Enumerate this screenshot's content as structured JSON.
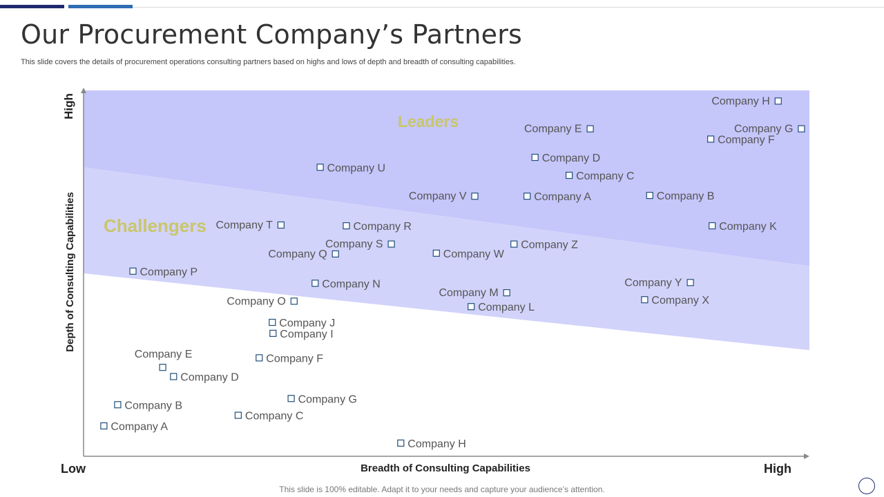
{
  "header": {
    "title": "Our Procurement Company’s Partners",
    "subtitle": "This slide covers the details of procurement operations consulting partners based on highs and lows of depth and breadth of consulting capabilities."
  },
  "footer": {
    "text": "This slide is 100% editable. Adapt it to your needs and capture your audience’s attention."
  },
  "colors": {
    "topbar_dark": "#1f2a6e",
    "topbar_blue": "#2e6db3",
    "leaders_zone": "#c5c6fa",
    "challengers_zone": "#d2d3fb",
    "zone_label": "#c9c66b",
    "marker_stroke": "#1f4e79",
    "point_label": "#555555",
    "axis": "#888888"
  },
  "chart_data": {
    "type": "scatter",
    "xlabel": "Breadth of Consulting Capabilities",
    "ylabel": "Depth of Consulting Capabilities",
    "x_low_label": "Low",
    "x_high_label": "High",
    "y_high_label": "High",
    "xlim": [
      0,
      100
    ],
    "ylim": [
      0,
      100
    ],
    "zones": [
      {
        "label": "Leaders",
        "boundary_left": 79,
        "boundary_right": 52
      },
      {
        "label": "Challengers",
        "boundary_left": 50,
        "boundary_right": 29
      }
    ],
    "points": [
      {
        "label": "Company H",
        "x": 95.7,
        "y": 97.1,
        "label_side": "left"
      },
      {
        "label": "Company E",
        "x": 69.8,
        "y": 89.5,
        "label_side": "left"
      },
      {
        "label": "Company G",
        "x": 98.9,
        "y": 89.5,
        "label_side": "left"
      },
      {
        "label": "Company F",
        "x": 86.4,
        "y": 86.7,
        "label_side": "right"
      },
      {
        "label": "Company D",
        "x": 62.2,
        "y": 81.7,
        "label_side": "right"
      },
      {
        "label": "Company C",
        "x": 66.9,
        "y": 76.8,
        "label_side": "right"
      },
      {
        "label": "Company U",
        "x": 32.6,
        "y": 79.0,
        "label_side": "right"
      },
      {
        "label": "Company V",
        "x": 53.9,
        "y": 71.1,
        "label_side": "left"
      },
      {
        "label": "Company A",
        "x": 61.1,
        "y": 71.1,
        "label_side": "right"
      },
      {
        "label": "Company B",
        "x": 78.0,
        "y": 71.3,
        "label_side": "right"
      },
      {
        "label": "Company K",
        "x": 86.6,
        "y": 63.0,
        "label_side": "right"
      },
      {
        "label": "Company T",
        "x": 27.2,
        "y": 63.2,
        "label_side": "left"
      },
      {
        "label": "Company R",
        "x": 36.2,
        "y": 63.0,
        "label_side": "right"
      },
      {
        "label": "Company S",
        "x": 42.4,
        "y": 58.0,
        "label_side": "left"
      },
      {
        "label": "Company Z",
        "x": 59.3,
        "y": 58.0,
        "label_side": "right"
      },
      {
        "label": "Company Q",
        "x": 34.7,
        "y": 55.3,
        "label_side": "left"
      },
      {
        "label": "Company W",
        "x": 48.6,
        "y": 55.5,
        "label_side": "right"
      },
      {
        "label": "Company P",
        "x": 6.8,
        "y": 50.6,
        "label_side": "right"
      },
      {
        "label": "Company N",
        "x": 31.9,
        "y": 47.3,
        "label_side": "right"
      },
      {
        "label": "Company Y",
        "x": 83.6,
        "y": 47.5,
        "label_side": "left"
      },
      {
        "label": "Company M",
        "x": 58.3,
        "y": 44.7,
        "label_side": "left"
      },
      {
        "label": "Company X",
        "x": 77.3,
        "y": 42.8,
        "label_side": "right"
      },
      {
        "label": "Company O",
        "x": 29.0,
        "y": 42.4,
        "label_side": "left"
      },
      {
        "label": "Company L",
        "x": 53.4,
        "y": 40.9,
        "label_side": "right"
      },
      {
        "label": "Company J",
        "x": 26.0,
        "y": 36.6,
        "label_side": "right"
      },
      {
        "label": "Company I",
        "x": 26.1,
        "y": 33.6,
        "label_side": "right"
      },
      {
        "label": "Company E",
        "x": 10.9,
        "y": 24.3,
        "label_side": "above"
      },
      {
        "label": "Company F",
        "x": 24.2,
        "y": 26.9,
        "label_side": "right"
      },
      {
        "label": "Company D",
        "x": 12.4,
        "y": 21.8,
        "label_side": "right"
      },
      {
        "label": "Company G",
        "x": 28.6,
        "y": 15.8,
        "label_side": "right"
      },
      {
        "label": "Company B",
        "x": 4.7,
        "y": 14.1,
        "label_side": "right"
      },
      {
        "label": "Company C",
        "x": 21.3,
        "y": 11.2,
        "label_side": "right"
      },
      {
        "label": "Company A",
        "x": 2.8,
        "y": 8.3,
        "label_side": "right"
      },
      {
        "label": "Company H",
        "x": 43.7,
        "y": 3.6,
        "label_side": "right"
      }
    ]
  }
}
